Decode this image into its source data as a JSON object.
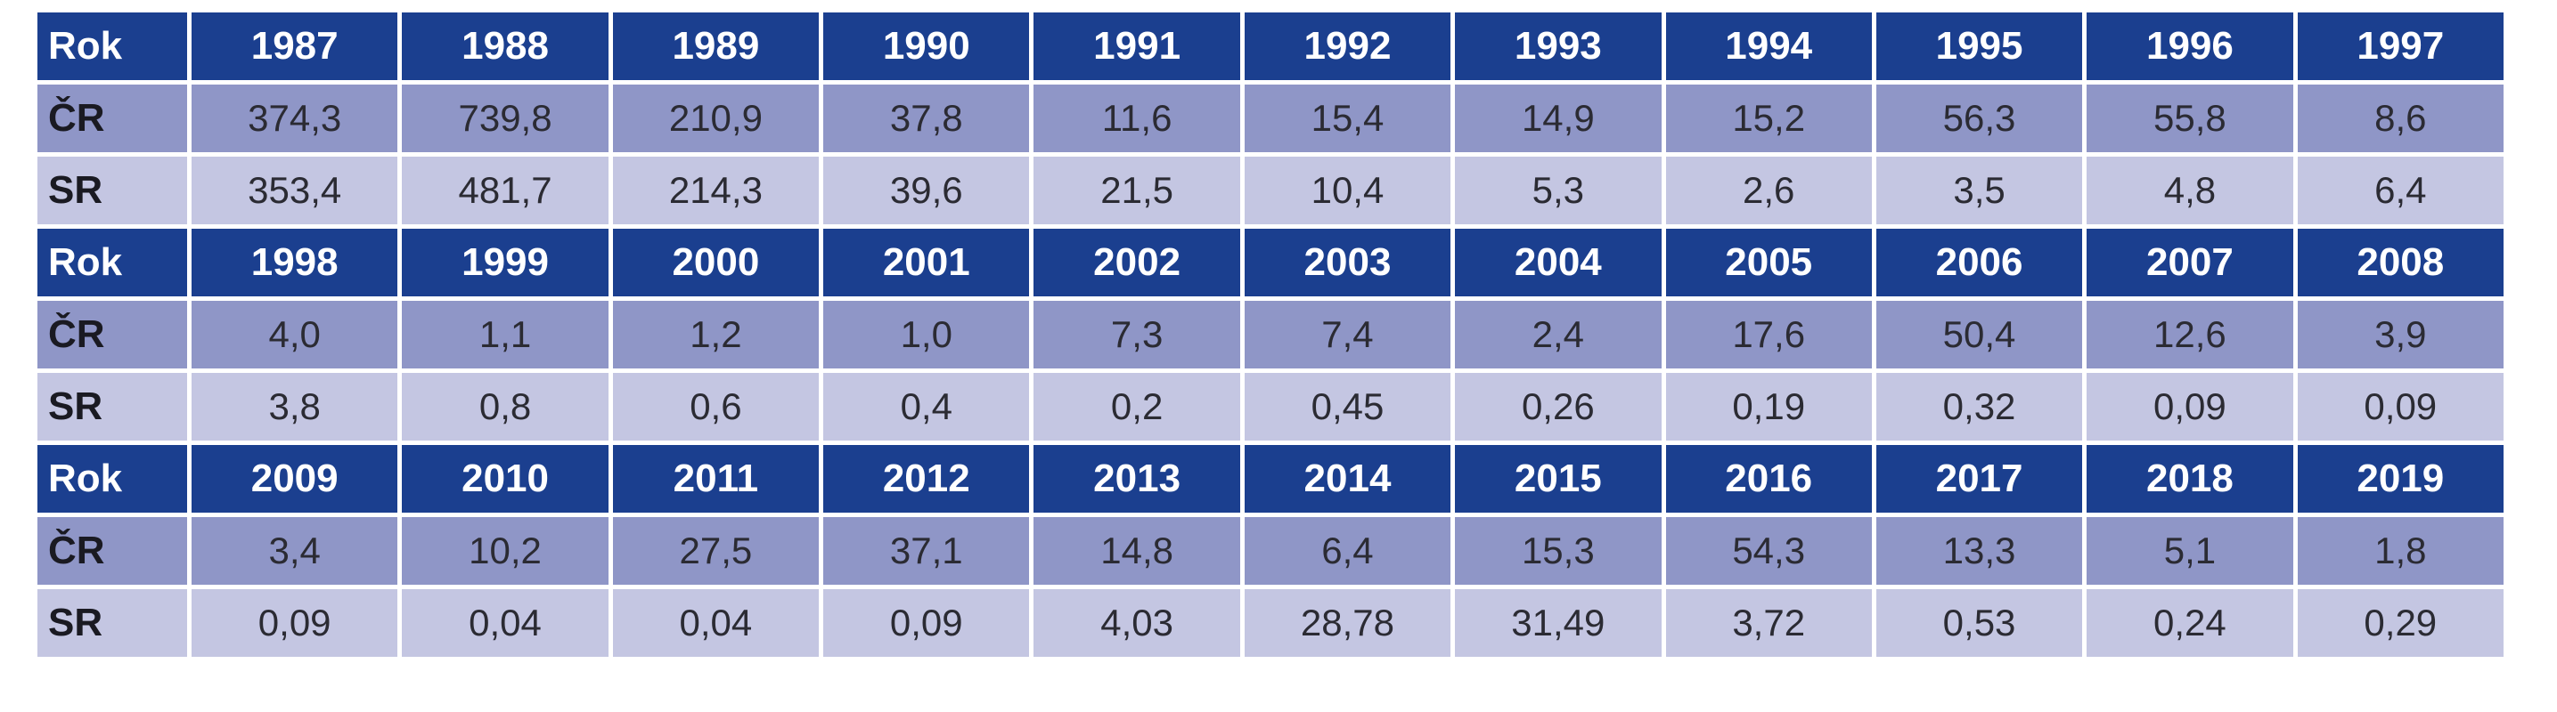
{
  "table": {
    "label_year": "Rok",
    "label_cr": "ČR",
    "label_sr": "SR",
    "blocks": [
      {
        "years": [
          "1987",
          "1988",
          "1989",
          "1990",
          "1991",
          "1992",
          "1993",
          "1994",
          "1995",
          "1996",
          "1997"
        ],
        "cr": [
          "374,3",
          "739,8",
          "210,9",
          "37,8",
          "11,6",
          "15,4",
          "14,9",
          "15,2",
          "56,3",
          "55,8",
          "8,6"
        ],
        "sr": [
          "353,4",
          "481,7",
          "214,3",
          "39,6",
          "21,5",
          "10,4",
          "5,3",
          "2,6",
          "3,5",
          "4,8",
          "6,4"
        ]
      },
      {
        "years": [
          "1998",
          "1999",
          "2000",
          "2001",
          "2002",
          "2003",
          "2004",
          "2005",
          "2006",
          "2007",
          "2008"
        ],
        "cr": [
          "4,0",
          "1,1",
          "1,2",
          "1,0",
          "7,3",
          "7,4",
          "2,4",
          "17,6",
          "50,4",
          "12,6",
          "3,9"
        ],
        "sr": [
          "3,8",
          "0,8",
          "0,6",
          "0,4",
          "0,2",
          "0,45",
          "0,26",
          "0,19",
          "0,32",
          "0,09",
          "0,09"
        ]
      },
      {
        "years": [
          "2009",
          "2010",
          "2011",
          "2012",
          "2013",
          "2014",
          "2015",
          "2016",
          "2017",
          "2018",
          "2019"
        ],
        "cr": [
          "3,4",
          "10,2",
          "27,5",
          "37,1",
          "14,8",
          "6,4",
          "15,3",
          "54,3",
          "13,3",
          "5,1",
          "1,8"
        ],
        "sr": [
          "0,09",
          "0,04",
          "0,04",
          "0,09",
          "4,03",
          "28,78",
          "31,49",
          "3,72",
          "0,53",
          "0,24",
          "0,29"
        ]
      }
    ]
  },
  "colors": {
    "header": "#1b3f8f",
    "row_cr": "#8f96c7",
    "row_sr": "#c4c6e2",
    "border": "#ffffff"
  }
}
